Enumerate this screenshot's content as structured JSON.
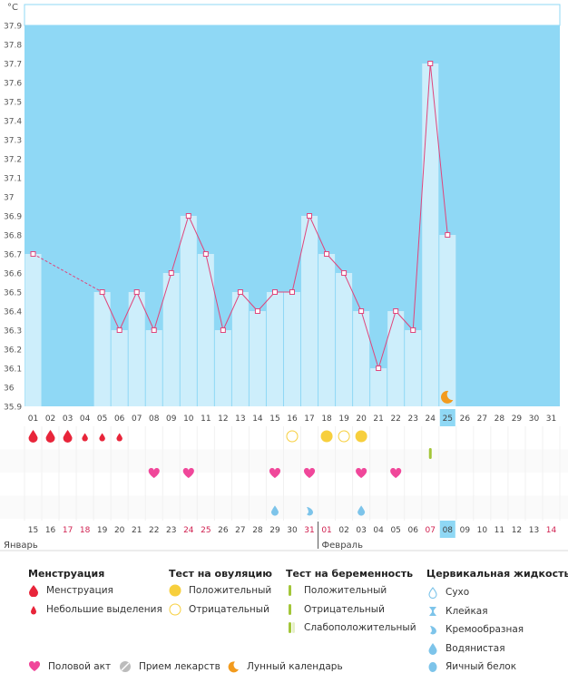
{
  "chart_data": {
    "type": "line",
    "title": "",
    "unit_label": "°C",
    "ylim": [
      35.9,
      37.9
    ],
    "y_ticks": [
      "37.9",
      "37.8",
      "37.7",
      "37.6",
      "37.5",
      "37.4",
      "37.3",
      "37.2",
      "37.1",
      "37",
      "36.9",
      "36.8",
      "36.7",
      "36.6",
      "36.5",
      "36.4",
      "36.3",
      "36.2",
      "36.1",
      "36",
      "35.9"
    ],
    "cycle_days": [
      "01",
      "02",
      "03",
      "04",
      "05",
      "06",
      "07",
      "08",
      "09",
      "10",
      "11",
      "12",
      "13",
      "14",
      "15",
      "16",
      "17",
      "18",
      "19",
      "20",
      "21",
      "22",
      "23",
      "24",
      "25",
      "26",
      "27",
      "28",
      "29",
      "30",
      "31"
    ],
    "calendar_days": [
      "15",
      "16",
      "17",
      "18",
      "19",
      "20",
      "21",
      "22",
      "23",
      "24",
      "25",
      "26",
      "27",
      "28",
      "29",
      "30",
      "31",
      "01",
      "02",
      "03",
      "04",
      "05",
      "06",
      "07",
      "08",
      "09",
      "10",
      "11",
      "12",
      "13",
      "14"
    ],
    "calendar_red_days": [
      "17",
      "18",
      "24",
      "25",
      "31",
      "01",
      "07",
      "14"
    ],
    "current_day_index": 24,
    "months": [
      {
        "name": "Январь",
        "start_index": 0
      },
      {
        "name": "Февраль",
        "start_index": 17
      }
    ],
    "temperatures": [
      36.7,
      null,
      null,
      null,
      36.5,
      36.3,
      36.5,
      36.3,
      36.6,
      36.9,
      36.7,
      36.3,
      36.5,
      36.4,
      36.5,
      36.5,
      36.9,
      36.7,
      36.6,
      36.4,
      36.1,
      36.4,
      36.3,
      37.7,
      36.8
    ],
    "events": {
      "menstruation": [
        0,
        1,
        2
      ],
      "spotting": [
        3,
        4,
        5
      ],
      "ovulation_positive": [
        17,
        19
      ],
      "ovulation_negative": [
        15,
        18
      ],
      "pregnancy_positive": [
        23
      ],
      "intercourse": [
        7,
        9,
        14,
        16,
        19,
        21
      ],
      "cervical_watery": [
        14,
        19
      ],
      "cervical_creamy": [
        16
      ],
      "moon_day": 24
    }
  },
  "legend": {
    "menstruation": {
      "title": "Менструация",
      "items": [
        "Менструация",
        "Небольшие выделения"
      ]
    },
    "ovulation": {
      "title": "Тест на овуляцию",
      "items": [
        "Положительный",
        "Отрицательный"
      ]
    },
    "pregnancy": {
      "title": "Тест на беременность",
      "items": [
        "Положительный",
        "Отрицательный",
        "Слабоположительный"
      ]
    },
    "cervical": {
      "title": "Цервикальная жидкость",
      "items": [
        "Сухо",
        "Клейкая",
        "Кремообразная",
        "Водянистая",
        "Яичный белок"
      ]
    },
    "bottom": [
      "Половой акт",
      "Прием лекарств",
      "Лунный календарь"
    ]
  },
  "colors": {
    "background": "#8fd8f5",
    "bar": "#cdeefb",
    "line": "#e0457b",
    "red": "#e8253a",
    "heart": "#f0479a",
    "yellow": "#f7cf3d",
    "green": "#a3c639",
    "drop": "#7dc4ea",
    "moon": "#f29b1e",
    "calendar_red": "#d01f4f"
  }
}
